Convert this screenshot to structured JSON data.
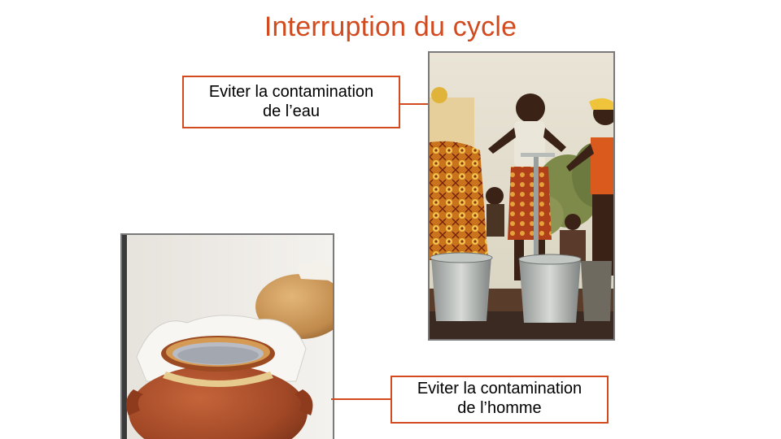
{
  "slide": {
    "title": "Interruption du cycle",
    "callouts": {
      "water": {
        "line1": "Eviter la contamination",
        "line2": "de l’eau"
      },
      "human": {
        "line1": "Eviter la contamination",
        "line2": "de l’homme"
      }
    },
    "colors": {
      "accent": "#d24a1e",
      "photo_border": "#7a7a7a"
    }
  }
}
